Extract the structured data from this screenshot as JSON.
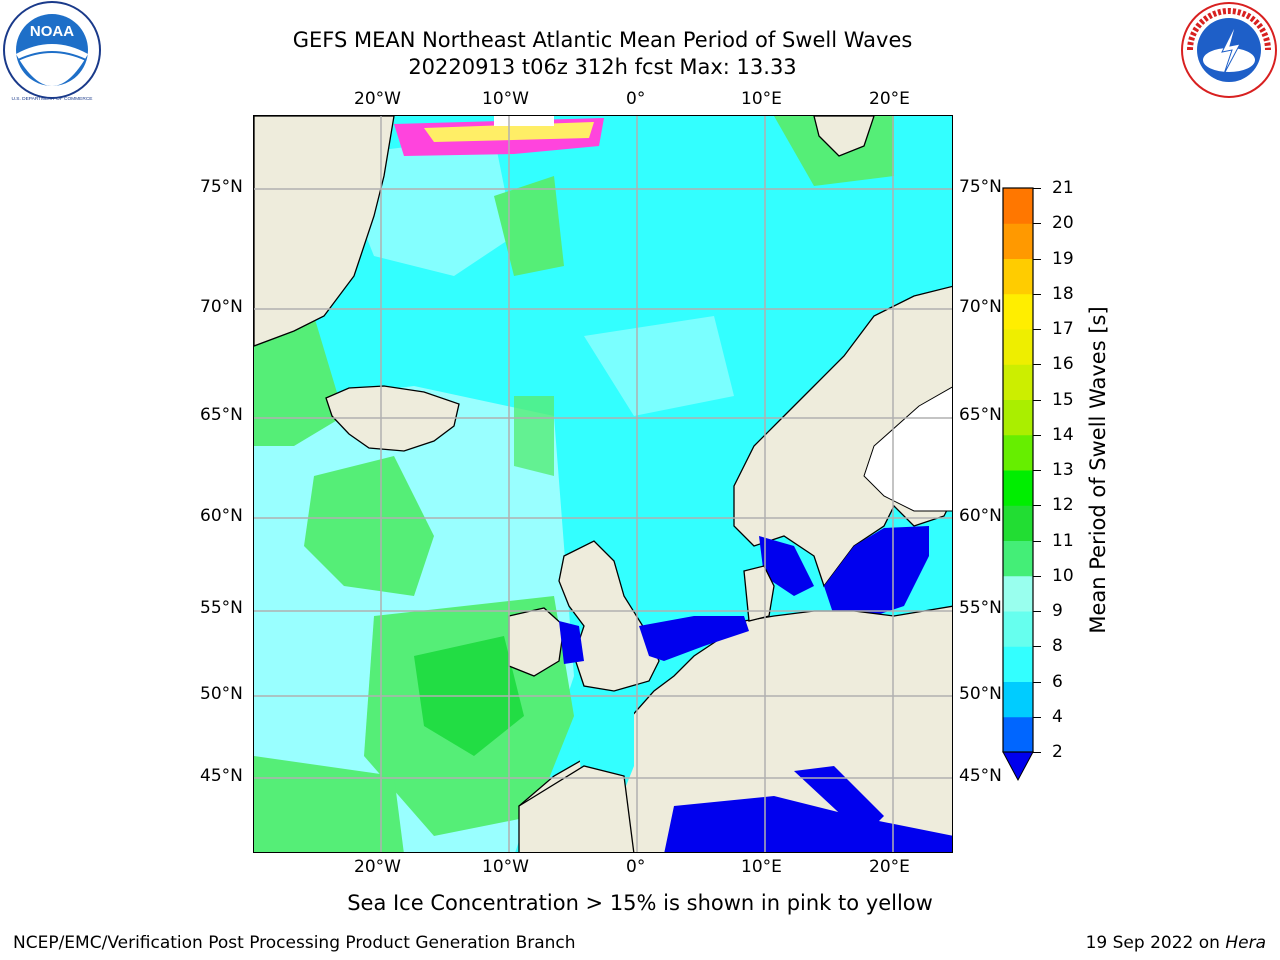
{
  "header": {
    "title_line1": "GEFS MEAN Northeast Atlantic Mean Period of Swell Waves",
    "title_line2": "20220913 t06z 312h fcst   Max: 13.33"
  },
  "logos": {
    "noaa_text": "NOAA",
    "noaa_ring_text": "NATIONAL OCEANIC AND ATMOSPHERIC ADMINISTRATION · U.S. DEPARTMENT OF COMMERCE",
    "nws_ring_text": "NATIONAL WEATHER SERVICE"
  },
  "map": {
    "lon_labels": [
      "20°W",
      "10°W",
      "0°",
      "10°E",
      "20°E"
    ],
    "lat_labels": [
      "75°N",
      "70°N",
      "65°N",
      "60°N",
      "55°N",
      "50°N",
      "45°N"
    ],
    "colors": {
      "land": "#eeecdc",
      "ocean_base": "#33ffff",
      "ocean_light": "#99ffff",
      "ocean_green": "#55ee77",
      "ocean_dark_green": "#22dd44",
      "ocean_blue": "#0080ff",
      "ocean_deep": "#0000ee",
      "ice_pink": "#ff44dd",
      "ice_yellow": "#ffee66",
      "grid": "#b0b0b0"
    }
  },
  "colorbar": {
    "title": "Mean Period of Swell Waves [s]",
    "levels": [
      "2",
      "4",
      "6",
      "8",
      "9",
      "10",
      "11",
      "12",
      "13",
      "14",
      "15",
      "16",
      "17",
      "18",
      "19",
      "20",
      "21"
    ],
    "colors": [
      "#0066ff",
      "#00ccff",
      "#33ffff",
      "#66ffee",
      "#99ffee",
      "#44ee77",
      "#22dd33",
      "#00ee00",
      "#66ee00",
      "#aaee00",
      "#ccee00",
      "#eeee00",
      "#ffee00",
      "#ffcc00",
      "#ff9900",
      "#ff7700",
      "#ff5500",
      "#ff3300",
      "#ff1100"
    ],
    "under_color": "#0000ee"
  },
  "footer": {
    "caption": "Sea Ice Concentration > 15% is shown in pink to yellow",
    "left": "NCEP/EMC/Verification Post Processing Product Generation Branch",
    "right_date": "19 Sep 2022 on ",
    "right_host": "Hera"
  }
}
